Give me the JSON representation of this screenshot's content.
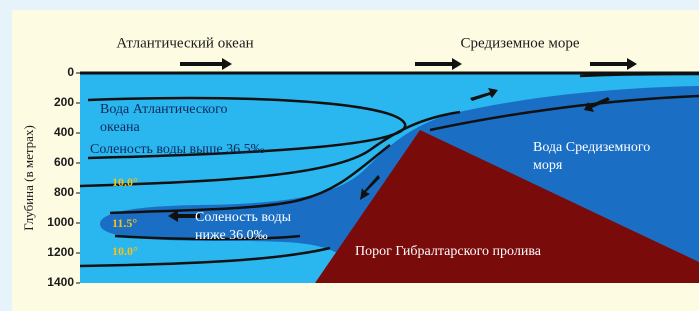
{
  "labels": {
    "atlantic_ocean": "Атлантический океан",
    "mediterranean_sea": "Средиземное море",
    "atlantic_water_1": "Вода Атлантического",
    "atlantic_water_2": "океана",
    "salinity_high": "Соленость воды выше 36.5‰",
    "salinity_low_1": "Соленость воды",
    "salinity_low_2": "ниже 36.0‰",
    "mediterranean_water_1": "Вода Средиземного",
    "mediterranean_water_2": "моря",
    "sill": "Порог Гибралтарского пролива",
    "temp_1": "10.0°",
    "temp_2": "11.5°",
    "temp_3": "10.0°"
  },
  "y_axis": {
    "label": "Глубина (в метрах)",
    "ticks": [
      0,
      200,
      400,
      600,
      800,
      1000,
      1200,
      1400
    ]
  }
}
